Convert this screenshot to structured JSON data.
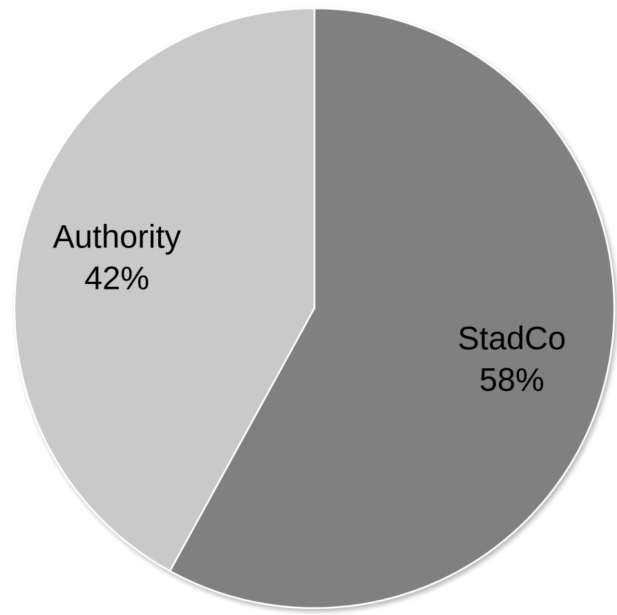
{
  "chart_data": {
    "type": "pie",
    "title": "",
    "categories": [
      "StadCo",
      "Authority"
    ],
    "values": [
      58,
      42
    ],
    "labels": [
      {
        "name": "StadCo",
        "percent": "58%"
      },
      {
        "name": "Authority",
        "percent": "42%"
      }
    ],
    "colors": [
      "#808080",
      "#c9c9c9"
    ],
    "start": "12 o'clock",
    "direction": "clockwise",
    "legend": "none"
  }
}
